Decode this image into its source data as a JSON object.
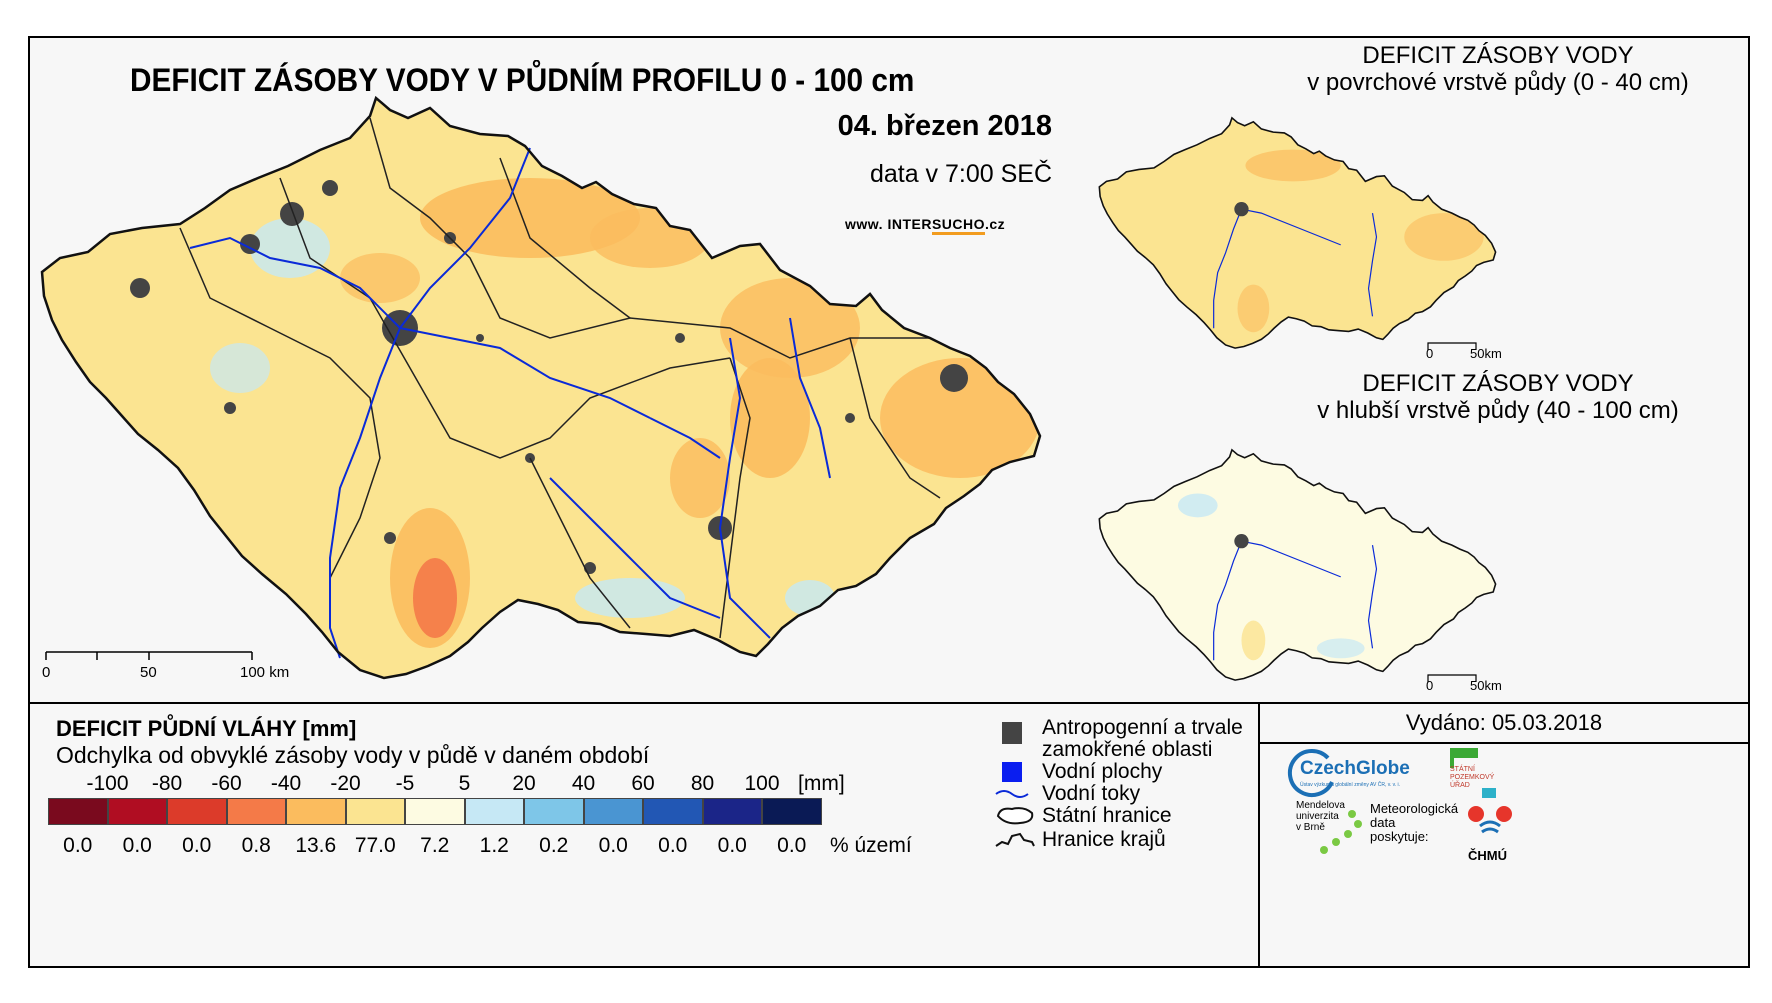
{
  "main_map": {
    "title": "DEFICIT ZÁSOBY VODY V PŮDNÍM PROFILU 0 - 100 cm",
    "date": "04. březen 2018",
    "time": "data v 7:00 SEČ",
    "website_prefix": "www. ",
    "website_mid": "INTER",
    "website_hl": "SUCHO",
    "website_suffix": ".cz",
    "scale": {
      "labels": [
        "0",
        "50",
        "100 km"
      ]
    }
  },
  "inset_top": {
    "title_line1": "DEFICIT ZÁSOBY VODY",
    "title_line2": "v povrchové vrstvě půdy (0 - 40 cm)",
    "scale": {
      "labels": [
        "0",
        "50km"
      ]
    }
  },
  "inset_bottom": {
    "title_line1": "DEFICIT ZÁSOBY VODY",
    "title_line2": "v hlubší vrstvě půdy (40 - 100 cm)",
    "scale": {
      "labels": [
        "0",
        "50km"
      ]
    }
  },
  "legend": {
    "title": "DEFICIT PŮDNÍ VLÁHY [mm]",
    "subtitle": "Odchylka od obvyklé zásoby vody v půdě v daném období",
    "unit": "[mm]",
    "pct_unit": "% území",
    "ticks": [
      "-100",
      "-80",
      "-60",
      "-40",
      "-20",
      "-5",
      "5",
      "20",
      "40",
      "60",
      "80",
      "100"
    ],
    "classes": [
      {
        "color": "#7a0a1e",
        "pct": "0.0"
      },
      {
        "color": "#b00d22",
        "pct": "0.0"
      },
      {
        "color": "#dc3b2a",
        "pct": "0.0"
      },
      {
        "color": "#f47a48",
        "pct": "0.8"
      },
      {
        "color": "#fbbc5e",
        "pct": "13.6"
      },
      {
        "color": "#fbe491",
        "pct": "77.0"
      },
      {
        "color": "#fdfbe2",
        "pct": "7.2"
      },
      {
        "color": "#c6e8f5",
        "pct": "1.2"
      },
      {
        "color": "#7ec6e8",
        "pct": "0.2"
      },
      {
        "color": "#4a95d2",
        "pct": "0.0"
      },
      {
        "color": "#2257b4",
        "pct": "0.0"
      },
      {
        "color": "#1b2588",
        "pct": "0.0"
      },
      {
        "color": "#0a1a55",
        "pct": "0.0"
      }
    ]
  },
  "map_key": {
    "urban": "Antropogenní a trvale",
    "urban2": "zamokřené oblasti",
    "water_bodies": "Vodní plochy",
    "rivers": "Vodní toky",
    "state_border": "Státní hranice",
    "region_border": "Hranice krajů"
  },
  "issued": "Vydáno: 05.03.2018",
  "logos": {
    "czechglobe": "CzechGlobe",
    "czechglobe_sub": "Ústav výzkumu globální změny AV ČR, v. v. i.",
    "spu_line1": "STÁTNÍ",
    "spu_line2": "POZEMKOVÝ",
    "spu_line3": "ÚŘAD",
    "mendel_line1": "Mendelova",
    "mendel_line2": "univerzita",
    "mendel_line3": "v Brně",
    "meteo_line1": "Meteorologická",
    "meteo_line2": "data",
    "meteo_line3": "poskytuje:",
    "chmu": "ČHMÚ"
  },
  "colors": {
    "main_fill": "#fbe491",
    "deficit_fill": "#fbbc5e",
    "strong_fill": "#f47a48",
    "wet_fill": "#c6e8f5",
    "river": "#0a2ad8",
    "urban": "#444444",
    "deep_fill": "#fdfbe2"
  }
}
